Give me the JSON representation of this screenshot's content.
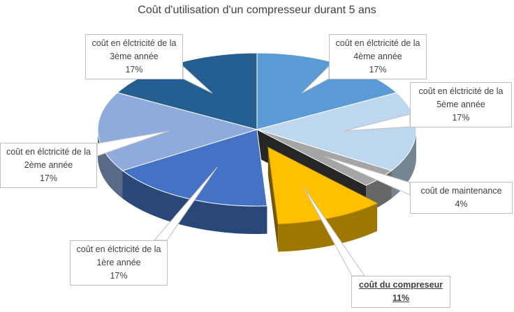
{
  "chart_data": {
    "type": "pie",
    "title": "Coût d'utilisation d'un compresseur durant 5 ans",
    "slices": [
      {
        "label": "coût en élctricité de la 4ème année",
        "value": 17,
        "pct_label": "17%",
        "color": "#5b9bd5"
      },
      {
        "label": "coût en élctricité de la 5ème année",
        "value": 17,
        "pct_label": "17%",
        "color": "#bdd7ee"
      },
      {
        "label": "coût de maintenance",
        "value": 4,
        "pct_label": "4%",
        "color": "#a5a5a5"
      },
      {
        "label": "coût du compreseur",
        "value": 11,
        "pct_label": "11%",
        "color": "#ffc000",
        "exploded": true,
        "emphasis": true
      },
      {
        "label": "coût en élctricité de la 1ère année",
        "value": 17,
        "pct_label": "17%",
        "color": "#4472c4"
      },
      {
        "label": "coût en élctricité de la 2ème année",
        "value": 17,
        "pct_label": "17%",
        "color": "#8faadc"
      },
      {
        "label": "coût en élctricité de la 3ème année",
        "value": 17,
        "pct_label": "17%",
        "color": "#255e91"
      }
    ]
  }
}
